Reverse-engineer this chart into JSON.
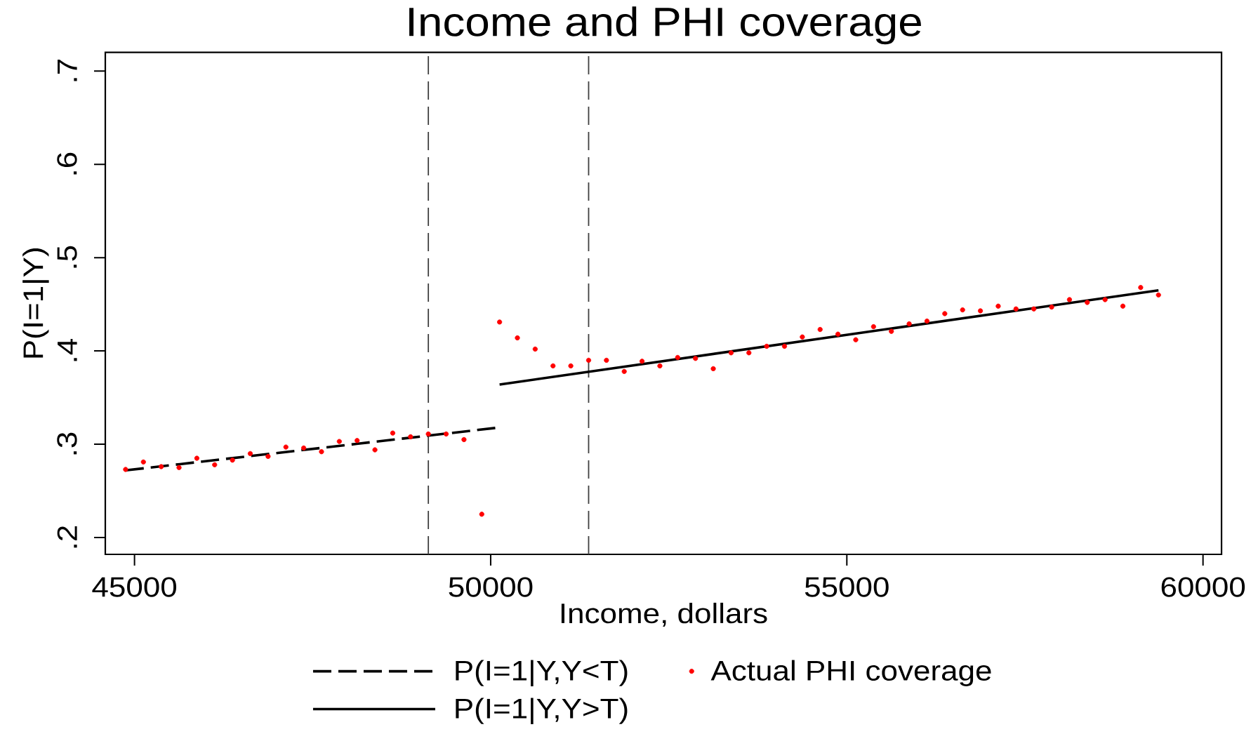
{
  "chart_data": {
    "type": "line",
    "title": "Income and PHI coverage",
    "xlabel": "Income, dollars",
    "ylabel": "P(I=1|Y)",
    "xlim": [
      44590,
      60260
    ],
    "xticks": [
      45000,
      50000,
      55000,
      60000
    ],
    "ylim": [
      0.182,
      0.72
    ],
    "yticks": [
      {
        "value": 0.2,
        "label": ".2"
      },
      {
        "value": 0.3,
        "label": ".3"
      },
      {
        "value": 0.4,
        "label": ".4"
      },
      {
        "value": 0.5,
        "label": ".5"
      },
      {
        "value": 0.6,
        "label": ".6"
      },
      {
        "value": 0.7,
        "label": ".7"
      }
    ],
    "legend": "bottom",
    "ref_lines": [
      {
        "axis": "x",
        "value": 49125,
        "color": "#404040",
        "line_style": "dashed"
      },
      {
        "axis": "x",
        "value": 51375,
        "color": "#404040",
        "line_style": "dashed"
      }
    ],
    "series": [
      {
        "name": "P(I=1|Y,Y<T)",
        "color": "#000000",
        "line_style": "dashed",
        "marker": "none",
        "x": [
          44875,
          50125
        ],
        "values": [
          0.272,
          0.318
        ]
      },
      {
        "name": "Actual PHI coverage",
        "type": "scatter",
        "color": "#ff0000",
        "marker": "circle",
        "x": [
          44875,
          45125,
          45375,
          45625,
          45875,
          46125,
          46375,
          46625,
          46875,
          47125,
          47375,
          47625,
          47875,
          48125,
          48375,
          48625,
          48875,
          49125,
          49375,
          49625,
          49875,
          50125,
          50375,
          50625,
          50875,
          51125,
          51375,
          51625,
          51875,
          52125,
          52375,
          52625,
          52875,
          53125,
          53375,
          53625,
          53875,
          54125,
          54375,
          54625,
          54875,
          55125,
          55375,
          55625,
          55875,
          56125,
          56375,
          56625,
          56875,
          57125,
          57375,
          57625,
          57875,
          58125,
          58375,
          58625,
          58875,
          59125,
          59375
        ],
        "values": [
          0.273,
          0.281,
          0.276,
          0.275,
          0.285,
          0.278,
          0.283,
          0.29,
          0.287,
          0.297,
          0.296,
          0.292,
          0.303,
          0.304,
          0.294,
          0.312,
          0.308,
          0.311,
          0.311,
          0.305,
          0.225,
          0.431,
          0.414,
          0.402,
          0.384,
          0.384,
          0.39,
          0.39,
          0.378,
          0.389,
          0.384,
          0.393,
          0.392,
          0.381,
          0.398,
          0.398,
          0.405,
          0.405,
          0.415,
          0.423,
          0.418,
          0.412,
          0.426,
          0.421,
          0.429,
          0.432,
          0.44,
          0.444,
          0.443,
          0.448,
          0.445,
          0.445,
          0.447,
          0.455,
          0.452,
          0.455,
          0.448,
          0.468,
          0.46
        ]
      },
      {
        "name": "P(I=1|Y,Y>T)",
        "color": "#000000",
        "line_style": "solid",
        "marker": "none",
        "x": [
          50125,
          59375
        ],
        "values": [
          0.364,
          0.465
        ]
      }
    ]
  }
}
